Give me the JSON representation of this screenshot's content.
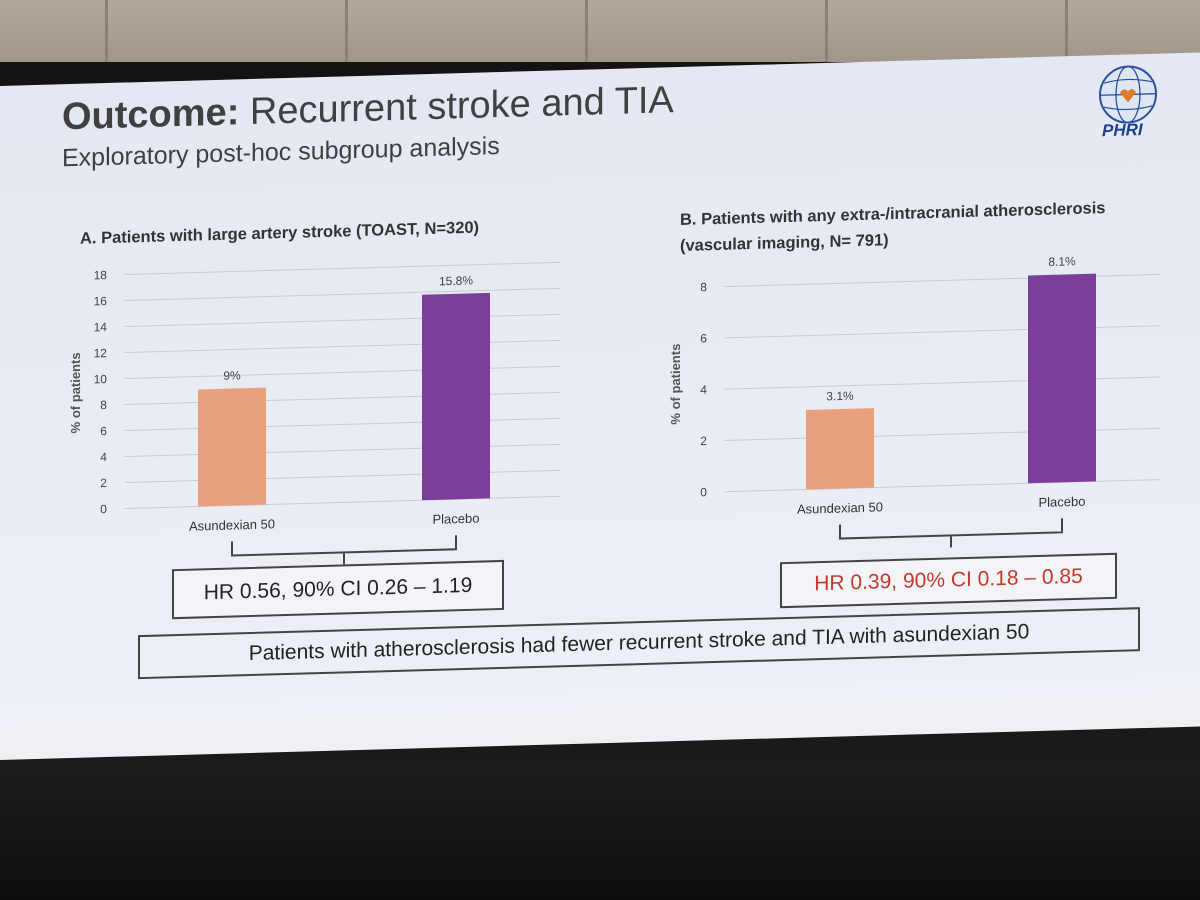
{
  "slide": {
    "title_bold": "Outcome:",
    "title_rest": " Recurrent stroke and TIA",
    "subtitle": "Exploratory post-hoc subgroup analysis",
    "logo_text": "PHRI",
    "conclusion": "Patients with atherosclerosis had fewer recurrent stroke and TIA with asundexian 50"
  },
  "chart_data": [
    {
      "type": "bar",
      "title": "A. Patients with large artery stroke (TOAST, N=320)",
      "ylabel": "% of patients",
      "categories": [
        "Asundexian 50",
        "Placebo"
      ],
      "values": [
        9,
        15.8
      ],
      "data_labels": [
        "9%",
        "15.8%"
      ],
      "colors": [
        "#e8a07c",
        "#7b3f99"
      ],
      "ylim": [
        0,
        18
      ],
      "yticks": [
        0,
        2,
        4,
        6,
        8,
        10,
        12,
        14,
        16,
        18
      ],
      "grid": true,
      "hr_text": "HR 0.56, 90% CI 0.26 – 1.19",
      "hr_color": "#222222"
    },
    {
      "type": "bar",
      "title": "B. Patients with any extra-/intracranial atherosclerosis",
      "title_line2": "(vascular imaging, N= 791)",
      "ylabel": "% of patients",
      "categories": [
        "Asundexian 50",
        "Placebo"
      ],
      "values": [
        3.1,
        8.1
      ],
      "data_labels": [
        "3.1%",
        "8.1%"
      ],
      "colors": [
        "#e8a07c",
        "#7b3f99"
      ],
      "ylim": [
        0,
        8.5
      ],
      "yticks": [
        0,
        2,
        4,
        6,
        8
      ],
      "grid": true,
      "hr_text": "HR 0.39, 90% CI 0.18 – 0.85",
      "hr_color": "#c0392b"
    }
  ]
}
